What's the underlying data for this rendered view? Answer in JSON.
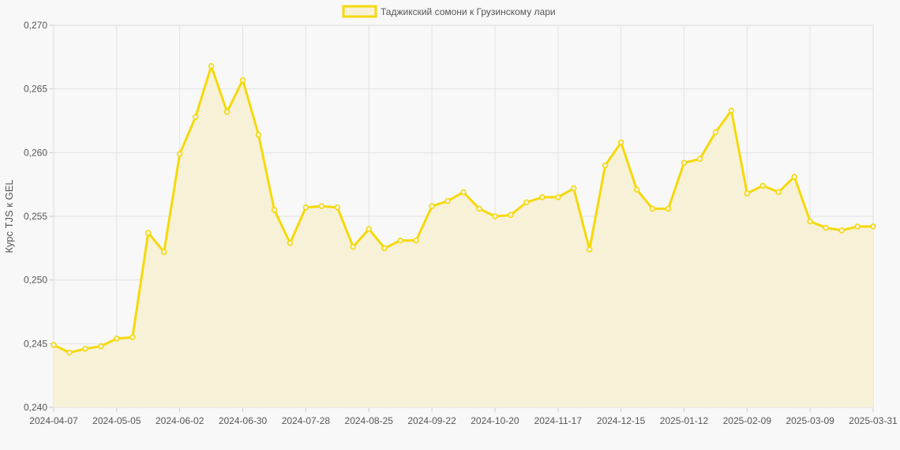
{
  "chart_data": {
    "type": "area",
    "series": [
      {
        "name": "Таджикский сомони к Грузинскому лари",
        "color": "#f5d90a",
        "fill": "#f7f1d8",
        "values": [
          0.2449,
          0.2443,
          0.2446,
          0.2448,
          0.2454,
          0.2455,
          0.2537,
          0.2522,
          0.2599,
          0.2628,
          0.2668,
          0.2632,
          0.2657,
          0.2614,
          0.2555,
          0.2529,
          0.2557,
          0.2558,
          0.2557,
          0.2526,
          0.254,
          0.2525,
          0.2531,
          0.2531,
          0.2558,
          0.2562,
          0.2569,
          0.2556,
          0.255,
          0.2551,
          0.2561,
          0.2565,
          0.2565,
          0.2572,
          0.2524,
          0.259,
          0.2608,
          0.2571,
          0.2556,
          0.2556,
          0.2592,
          0.2595,
          0.2616,
          0.2633,
          0.2568,
          0.2574,
          0.2569,
          0.2581,
          0.2546,
          0.2541,
          0.2539,
          0.2542,
          0.2542
        ]
      }
    ],
    "x_tick_labels": [
      "2024-04-07",
      "2024-05-05",
      "2024-06-02",
      "2024-06-30",
      "2024-07-28",
      "2024-08-25",
      "2024-09-22",
      "2024-10-20",
      "2024-11-17",
      "2024-12-15",
      "2025-01-12",
      "2025-02-09",
      "2025-03-09",
      "2025-03-31"
    ],
    "y_tick_labels": [
      "0,240",
      "0,245",
      "0,250",
      "0,255",
      "0,260",
      "0,265",
      "0,270"
    ],
    "ylim": [
      0.24,
      0.27
    ],
    "ylabel": "Курс TJS к GEL",
    "legend_position": "top",
    "grid": true
  }
}
